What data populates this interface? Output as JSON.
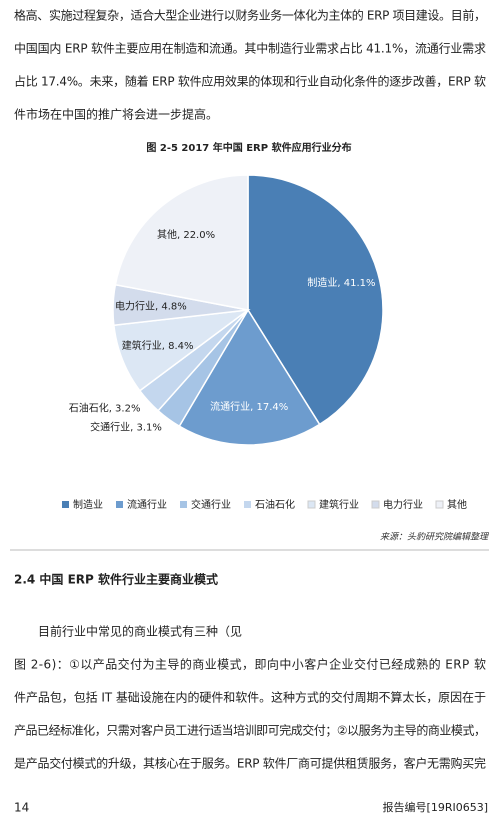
{
  "paragraph_1": [
    "格高、实施过程复杂，适合大型企业进行以财务业务一体化为主体的 ERP 项目建设。目前，",
    "中国国内 ERP 软件主要应用在制造和流通。其中制造行业需求占比 41.1%，流通行业需求",
    "占比 17.4%。未来，随着 ERP 软件应用效果的体现和行业自动化条件的逐步改善，ERP 软",
    "件市场在中国的推广将会进一步提高。"
  ],
  "chart_data": {
    "type": "pie",
    "title": "图 2-5 2017 年中国 ERP 软件应用行业分布",
    "categories": [
      "制造业",
      "流通行业",
      "交通行业",
      "石油石化",
      "建筑行业",
      "电力行业",
      "其他"
    ],
    "values": [
      41.1,
      17.4,
      3.1,
      3.2,
      8.4,
      4.8,
      22.0
    ],
    "value_labels": [
      "制造业, 41.1%",
      "流通行业, 17.4%",
      "交通行业, 3.1%",
      "石油石化, 3.2%",
      "建筑行业, 8.4%",
      "电力行业, 4.8%",
      "其他, 22.0%"
    ],
    "colors": [
      "#4a7fb5",
      "#6d9cce",
      "#a6c4e5",
      "#c4d7ee",
      "#dce7f4",
      "#d3dcec",
      "#eef1f7"
    ],
    "legend": "bottom"
  },
  "source": "来源：头豹研究院编辑整理",
  "section_title": "2.4    中国 ERP 软件行业主要商业模式",
  "paragraph_2": [
    "目前行业中常见的商业模式有三种（见",
    "图 2-6)：①以产品交付为主导的商业模式，即向中小客户企业交付已经成熟的 ERP 软",
    "件产品包，包括 IT 基础设施在内的硬件和软件。这种方式的交付周期不算太长，原因在于",
    "产品已经标准化，只需对客户员工进行适当培训即可完成交付；②以服务为主导的商业模式，",
    "是产品交付模式的升级，其核心在于服务。ERP 软件厂商可提供租赁服务，客户无需购买完"
  ],
  "footer": {
    "page": "14",
    "report": "报告编号[19RI0653]"
  }
}
